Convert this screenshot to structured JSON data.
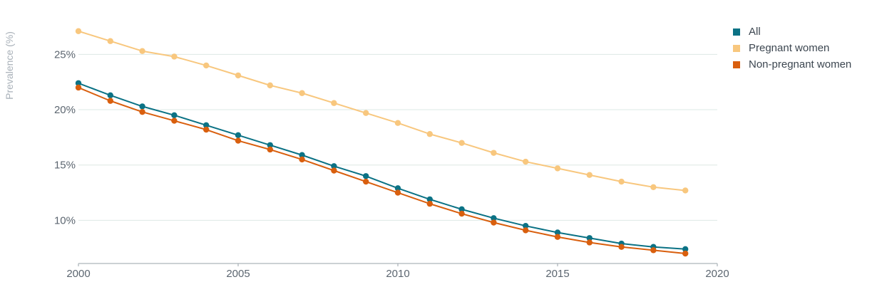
{
  "chart_data": {
    "type": "line",
    "title": "",
    "xlabel": "",
    "ylabel": "Prevalence (%)",
    "x": [
      2000,
      2001,
      2002,
      2003,
      2004,
      2005,
      2006,
      2007,
      2008,
      2009,
      2010,
      2011,
      2012,
      2013,
      2014,
      2015,
      2016,
      2017,
      2018,
      2019
    ],
    "xlim": [
      2000,
      2020
    ],
    "ylim": [
      6.1,
      28.5
    ],
    "x_ticks": [
      2000,
      2005,
      2010,
      2015,
      2020
    ],
    "y_ticks": [
      10,
      15,
      20,
      25
    ],
    "x_tick_labels": [
      "2000",
      "2005",
      "2010",
      "2015",
      "2020"
    ],
    "y_tick_labels": [
      "10%",
      "15%",
      "20%",
      "25%"
    ],
    "grid": "horizontal",
    "legend_position": "top-right",
    "series": [
      {
        "name": "All",
        "color": "#0b7285",
        "values": [
          22.4,
          21.3,
          20.3,
          19.5,
          18.6,
          17.7,
          16.8,
          15.9,
          14.9,
          14.0,
          12.9,
          11.9,
          11.0,
          10.2,
          9.5,
          8.9,
          8.4,
          7.9,
          7.6,
          7.4
        ]
      },
      {
        "name": "Pregnant women",
        "color": "#f8c77e",
        "values": [
          27.1,
          26.2,
          25.3,
          24.8,
          24.0,
          23.1,
          22.2,
          21.5,
          20.6,
          19.7,
          18.8,
          17.8,
          17.0,
          16.1,
          15.3,
          14.7,
          14.1,
          13.5,
          13.0,
          12.7
        ]
      },
      {
        "name": "Non-pregnant women",
        "color": "#d95f0e",
        "values": [
          22.0,
          20.8,
          19.8,
          19.0,
          18.2,
          17.2,
          16.4,
          15.5,
          14.5,
          13.5,
          12.5,
          11.5,
          10.6,
          9.8,
          9.1,
          8.5,
          8.0,
          7.6,
          7.3,
          7.0
        ]
      }
    ]
  }
}
